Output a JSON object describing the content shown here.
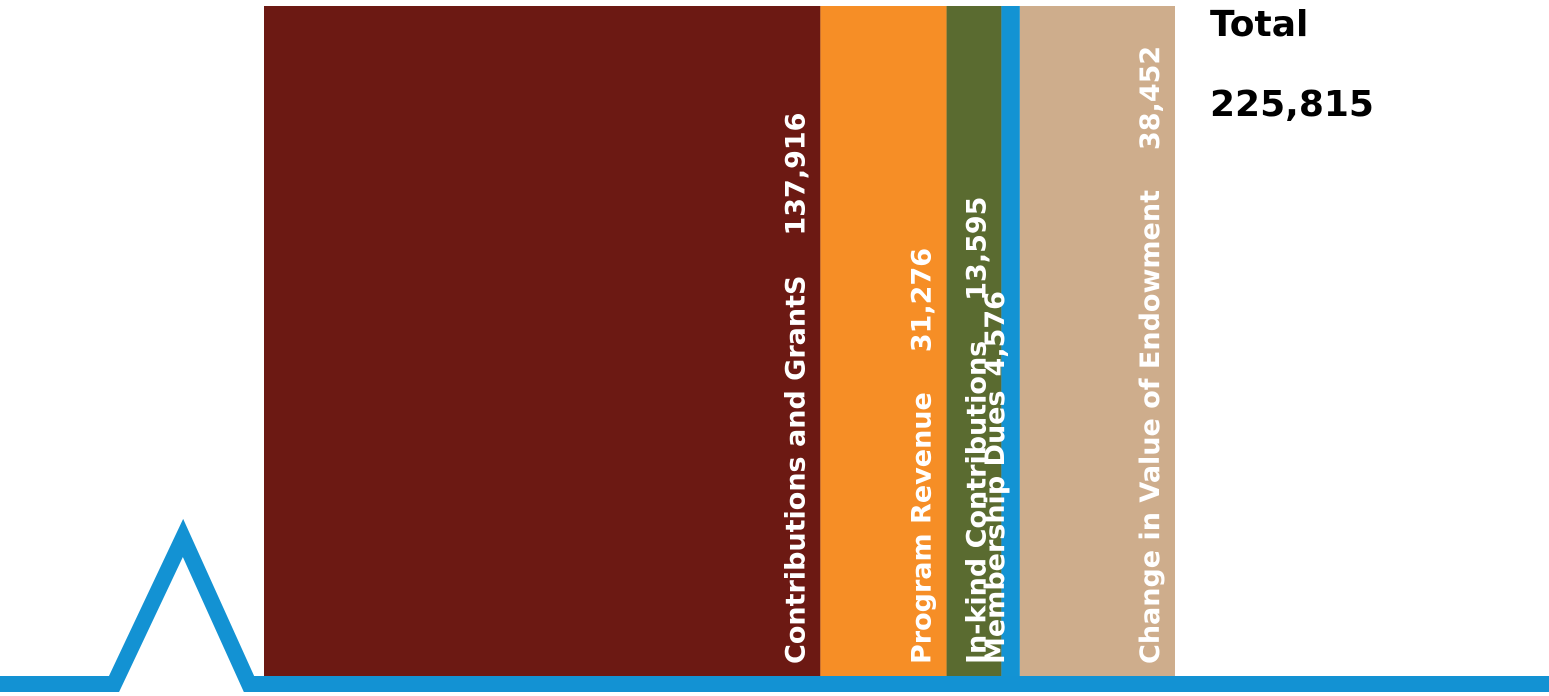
{
  "chart_data": {
    "type": "bar",
    "orientation": "stacked-horizontal",
    "categories": [
      "Contributions and GrantS",
      "Program Revenue",
      "In-kind Contributions",
      "Membership Dues",
      "Change in Value of Endowment"
    ],
    "values": [
      137916,
      31276,
      13595,
      4576,
      38452
    ],
    "value_labels": [
      "137,916",
      "31,276",
      "13,595",
      "4,576",
      "38,452"
    ],
    "colors": [
      "#6c1913",
      "#f68e26",
      "#5a6b30",
      "#1393d3",
      "#cead8c"
    ],
    "total_label": "Total",
    "total_value": "225,815",
    "decoration_color": "#1392d3"
  }
}
